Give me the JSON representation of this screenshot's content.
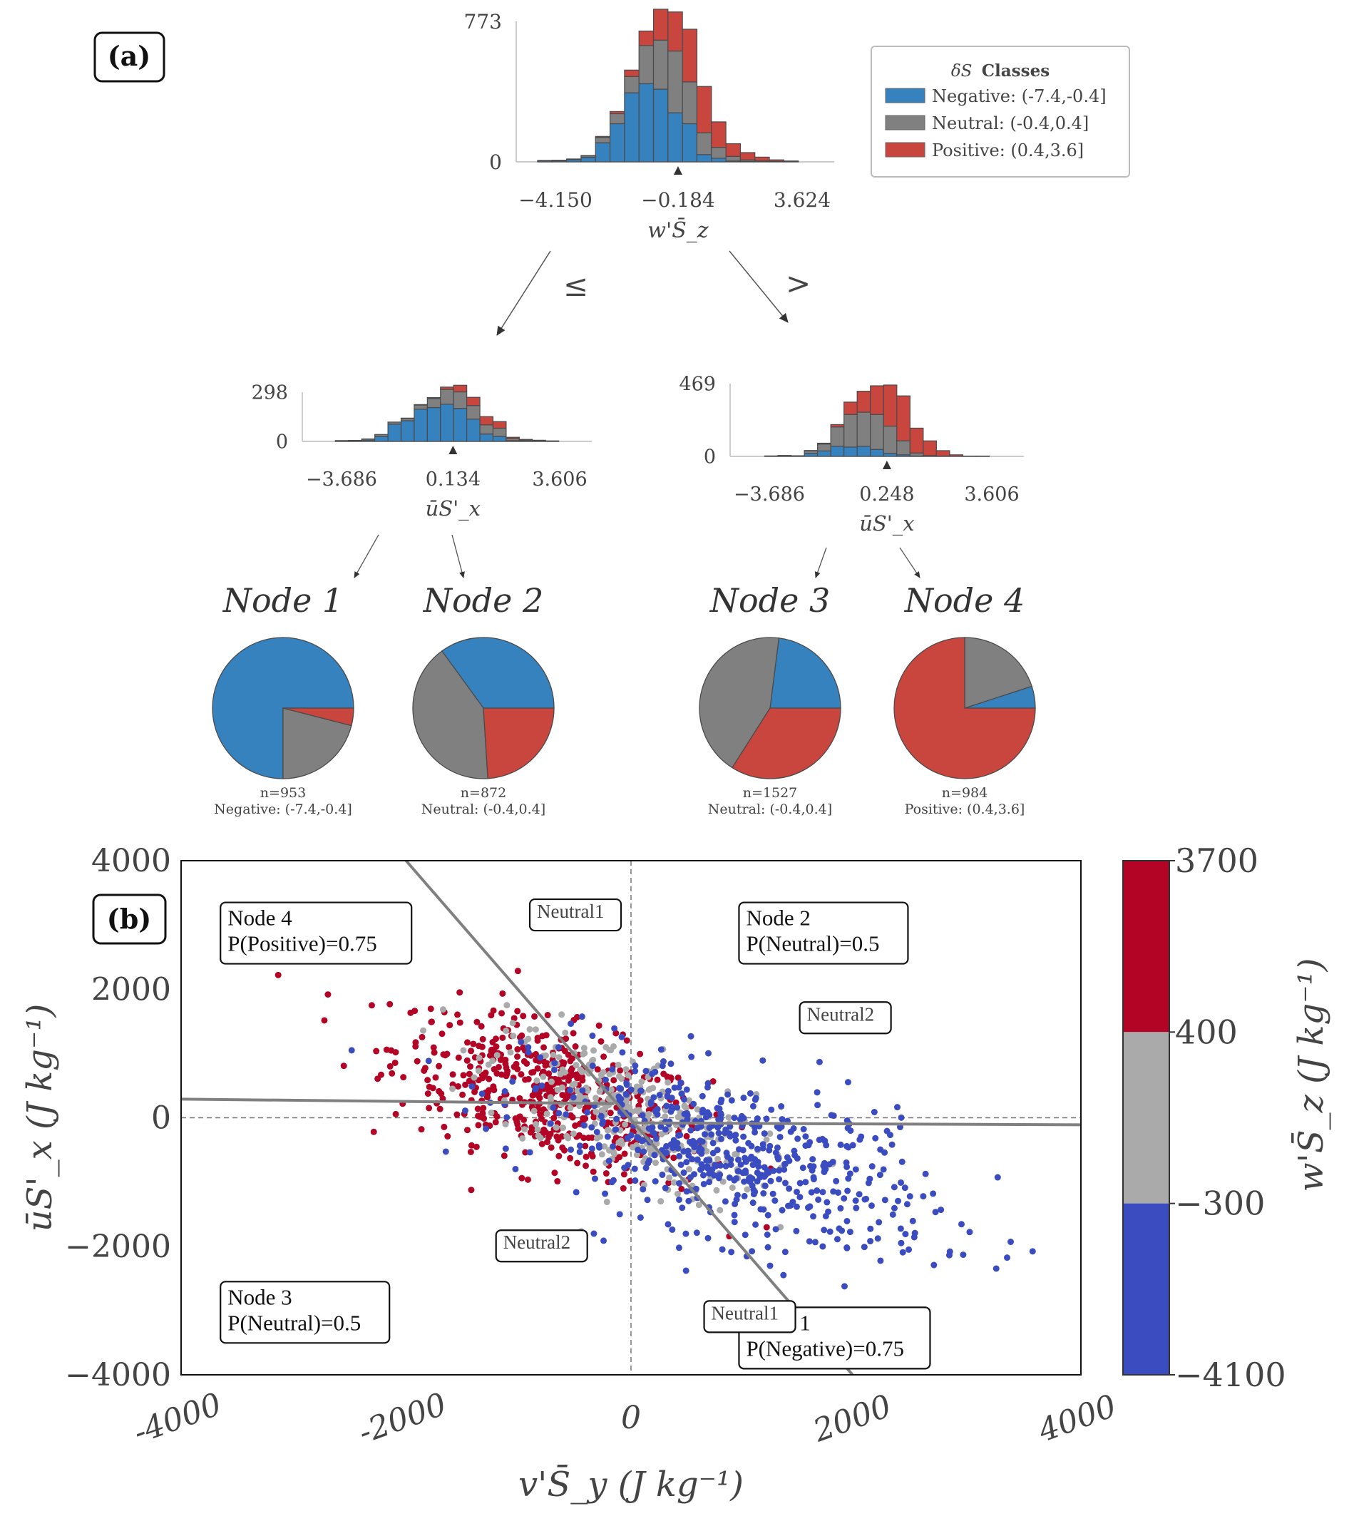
{
  "panel_a_label": "(a)",
  "panel_b_label": "(b)",
  "colors": {
    "negative": "#3682be",
    "neutral": "#808080",
    "positive": "#c9463f",
    "scatter_positive": "#b40426",
    "scatter_neutral": "#aaaaaa",
    "scatter_negative": "#3b4cc0"
  },
  "chart_data": [
    {
      "id": "root_hist",
      "type": "bar",
      "stacked": true,
      "title": "",
      "xlabel": "w'S̄_z",
      "xticks": [
        "−4.150",
        "−0.184",
        "3.624"
      ],
      "xlim": [
        -4.15,
        3.624
      ],
      "ylim": [
        0,
        773
      ],
      "yticks": [
        "773",
        "0"
      ],
      "split_marker": -0.184,
      "bins": 19,
      "series": [
        {
          "name": "Negative",
          "values": [
            6,
            6,
            12,
            25,
            105,
            210,
            380,
            430,
            400,
            270,
            210,
            40,
            20,
            5,
            3,
            2,
            1,
            0,
            0
          ]
        },
        {
          "name": "Neutral",
          "values": [
            2,
            3,
            4,
            8,
            30,
            55,
            90,
            210,
            270,
            340,
            230,
            120,
            60,
            25,
            8,
            4,
            2,
            1,
            0
          ]
        },
        {
          "name": "Positive",
          "values": [
            0,
            0,
            0,
            2,
            5,
            12,
            35,
            80,
            170,
            215,
            290,
            255,
            140,
            70,
            40,
            20,
            8,
            4,
            0
          ]
        }
      ]
    },
    {
      "id": "left_hist",
      "type": "bar",
      "stacked": true,
      "xlabel": "ūS'_x",
      "xticks": [
        "−3.686",
        "0.134",
        "3.606"
      ],
      "xlim": [
        -3.686,
        3.606
      ],
      "ylim": [
        0,
        298
      ],
      "yticks": [
        "298",
        "0"
      ],
      "split_marker": 0.134,
      "bins": 19,
      "series": [
        {
          "name": "Negative",
          "values": [
            0,
            2,
            3,
            8,
            30,
            105,
            125,
            195,
            205,
            225,
            200,
            135,
            45,
            30,
            5,
            2,
            1,
            0,
            0
          ]
        },
        {
          "name": "Neutral",
          "values": [
            0,
            3,
            3,
            7,
            12,
            12,
            14,
            25,
            55,
            90,
            100,
            82,
            55,
            50,
            12,
            6,
            3,
            2,
            0
          ]
        },
        {
          "name": "Positive",
          "values": [
            0,
            0,
            0,
            0,
            0,
            0,
            2,
            3,
            5,
            14,
            40,
            50,
            50,
            40,
            8,
            4,
            3,
            1,
            0
          ]
        }
      ]
    },
    {
      "id": "right_hist",
      "type": "bar",
      "stacked": true,
      "xlabel": "ūS'_x",
      "xticks": [
        "−3.686",
        "0.248",
        "3.606"
      ],
      "xlim": [
        -3.686,
        3.606
      ],
      "ylim": [
        0,
        469
      ],
      "yticks": [
        "469",
        "0"
      ],
      "split_marker": 0.248,
      "bins": 19,
      "series": [
        {
          "name": "Negative",
          "values": [
            0,
            1,
            3,
            2,
            20,
            35,
            65,
            60,
            65,
            45,
            20,
            10,
            2,
            0,
            0,
            0,
            0,
            0,
            0
          ]
        },
        {
          "name": "Neutral",
          "values": [
            0,
            2,
            3,
            2,
            15,
            45,
            125,
            210,
            220,
            225,
            175,
            90,
            20,
            5,
            2,
            0,
            0,
            0,
            0
          ]
        },
        {
          "name": "Positive",
          "values": [
            0,
            0,
            0,
            0,
            3,
            5,
            15,
            80,
            135,
            185,
            265,
            290,
            160,
            95,
            35,
            10,
            2,
            2,
            0
          ]
        }
      ]
    },
    {
      "id": "legend",
      "type": "legend",
      "title_symbol": "δS",
      "title": "Classes",
      "entries": [
        {
          "name": "Negative: (-7.4,-0.4]",
          "class": "negative"
        },
        {
          "name": "Neutral: (-0.4,0.4]",
          "class": "neutral"
        },
        {
          "name": "Positive: (0.4,3.6]",
          "class": "positive"
        }
      ],
      "split_labels": [
        "≤",
        ">"
      ]
    },
    {
      "id": "leaf_pies",
      "type": "pie",
      "nodes": [
        {
          "title": "Node 1",
          "n": "n=953",
          "label": "Negative: (-7.4,-0.4]",
          "slices": {
            "negative": 0.75,
            "neutral": 0.21,
            "positive": 0.04
          }
        },
        {
          "title": "Node 2",
          "n": "n=872",
          "label": "Neutral: (-0.4,0.4]",
          "slices": {
            "negative": 0.35,
            "neutral": 0.41,
            "positive": 0.24
          }
        },
        {
          "title": "Node 3",
          "n": "n=1527",
          "label": "Neutral: (-0.4,0.4]",
          "slices": {
            "negative": 0.23,
            "neutral": 0.43,
            "positive": 0.34
          }
        },
        {
          "title": "Node 4",
          "n": "n=984",
          "label": "Positive: (0.4,3.6]",
          "slices": {
            "negative": 0.05,
            "neutral": 0.2,
            "positive": 0.75
          }
        }
      ]
    },
    {
      "id": "scatter",
      "type": "scatter",
      "xlabel": "v'S̄_y (J kg⁻¹)",
      "ylabel": "ūS'_x (J kg⁻¹)",
      "xlim": [
        -4000,
        4000
      ],
      "ylim": [
        -4000,
        4000
      ],
      "xticks": [
        "-4000",
        "-2000",
        "0",
        "2000",
        "4000"
      ],
      "xtick_values": [
        -4000,
        -2000,
        0,
        2000,
        4000
      ],
      "yticks": [
        "4000",
        "2000",
        "0",
        "−2000",
        "−4000"
      ],
      "ytick_values": [
        4000,
        2000,
        0,
        -2000,
        -4000
      ],
      "reference_lines": {
        "x": 0,
        "y": 0
      },
      "decision_lines": [
        {
          "name": "diagonal-boundary",
          "from": [
            -2000,
            4000
          ],
          "to": [
            1970,
            -4000
          ]
        },
        {
          "name": "left-horizontal-boundary",
          "from": [
            -4000,
            290
          ],
          "to": [
            -150,
            220
          ]
        },
        {
          "name": "right-horizontal-boundary",
          "from": [
            0,
            -80
          ],
          "to": [
            4000,
            -110
          ]
        }
      ],
      "colorbar": {
        "label": "w'S̄_z (J kg⁻¹)",
        "ticks": [
          "3700",
          "400",
          "−300",
          "−4100"
        ],
        "bands": [
          {
            "from": 400,
            "to": 3700,
            "class": "scatter_positive"
          },
          {
            "from": -300,
            "to": 400,
            "class": "scatter_neutral"
          },
          {
            "from": -4100,
            "to": -300,
            "class": "scatter_negative"
          }
        ]
      },
      "annotations": [
        {
          "name": "node4-box",
          "lines": [
            "Node 4",
            "P(Positive)=0.75"
          ],
          "at": [
            -3650,
            3350
          ]
        },
        {
          "name": "node2-box",
          "lines": [
            "Node 2",
            "P(Neutral)=0.5"
          ],
          "at": [
            960,
            3350
          ]
        },
        {
          "name": "node3-box",
          "lines": [
            "Node 3",
            "P(Neutral)=0.5"
          ],
          "at": [
            -3650,
            -2550
          ]
        },
        {
          "name": "node1-box",
          "lines": [
            "Node 1",
            "P(Negative)=0.75"
          ],
          "at": [
            960,
            -2950
          ]
        },
        {
          "name": "neutral1-top",
          "lines": [
            "Neutral1"
          ],
          "at": [
            -900,
            3400
          ],
          "small": true
        },
        {
          "name": "neutral2-right",
          "lines": [
            "Neutral2"
          ],
          "at": [
            1500,
            1800
          ],
          "small": true
        },
        {
          "name": "neutral2-left",
          "lines": [
            "Neutral2"
          ],
          "at": [
            -1200,
            -1750
          ],
          "small": true
        },
        {
          "name": "neutral1-bottom",
          "lines": [
            "Neutral1"
          ],
          "at": [
            650,
            -2850
          ],
          "small": true
        }
      ],
      "point_groups": [
        {
          "class": "scatter_positive",
          "count": 520,
          "center": [
            -700,
            350
          ],
          "spread": [
            700,
            650
          ],
          "corr": -0.55
        },
        {
          "class": "scatter_neutral",
          "count": 300,
          "center": [
            -100,
            100
          ],
          "spread": [
            600,
            650
          ],
          "corr": -0.6
        },
        {
          "class": "scatter_negative",
          "count": 560,
          "center": [
            900,
            -600
          ],
          "spread": [
            900,
            750
          ],
          "corr": -0.55
        }
      ]
    }
  ]
}
